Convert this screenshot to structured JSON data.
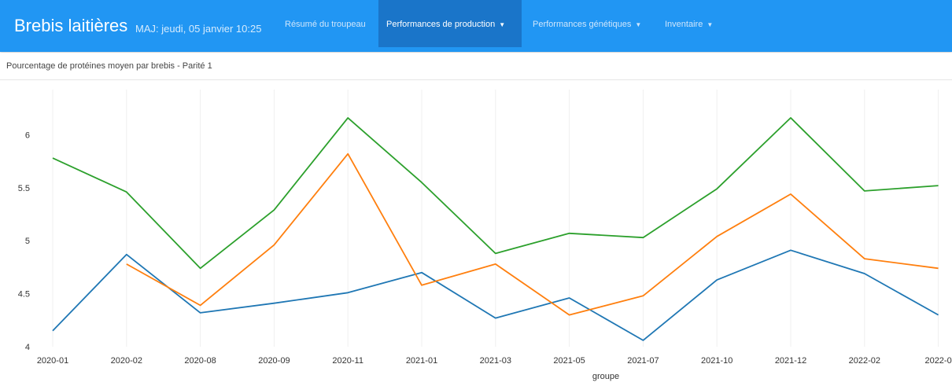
{
  "navbar": {
    "brand": "Brebis laitières",
    "updated": "MAJ: jeudi, 05 janvier 10:25",
    "items": [
      {
        "label": "Résumé du troupeau",
        "active": false,
        "caret": false
      },
      {
        "label": "Performances de production",
        "active": true,
        "caret": true
      },
      {
        "label": "Performances génétiques",
        "active": false,
        "caret": true
      },
      {
        "label": "Inventaire",
        "active": false,
        "caret": true
      }
    ]
  },
  "subtitle": "Pourcentage de protéines moyen par brebis - Parité 1",
  "chart_data": {
    "type": "line",
    "xlabel": "groupe",
    "ylabel": "",
    "categories": [
      "2020-01",
      "2020-02",
      "2020-08",
      "2020-09",
      "2020-11",
      "2021-01",
      "2021-03",
      "2021-05",
      "2021-07",
      "2021-10",
      "2021-12",
      "2022-02",
      "2022-0"
    ],
    "yticks": [
      4,
      4.5,
      5,
      5.5,
      6
    ],
    "ytick_labels": [
      "4",
      "4.5",
      "5",
      "5.5",
      "6"
    ],
    "ylim": [
      4,
      6.3
    ],
    "grid": {
      "vertical": true,
      "horizontal": false
    },
    "series": [
      {
        "color": "#1f77b4",
        "values": [
          4.15,
          4.87,
          4.32,
          4.41,
          4.51,
          4.7,
          4.27,
          4.46,
          4.06,
          4.63,
          4.91,
          4.69,
          4.3
        ]
      },
      {
        "color": "#ff7f0e",
        "values": [
          null,
          4.78,
          4.39,
          4.96,
          5.82,
          4.58,
          4.78,
          4.3,
          4.48,
          5.04,
          5.44,
          4.83,
          4.74
        ]
      },
      {
        "color": "#2ca02c",
        "values": [
          5.78,
          5.46,
          4.74,
          5.29,
          6.16,
          5.55,
          4.88,
          5.07,
          5.03,
          5.49,
          6.16,
          5.47,
          5.52
        ]
      }
    ]
  }
}
